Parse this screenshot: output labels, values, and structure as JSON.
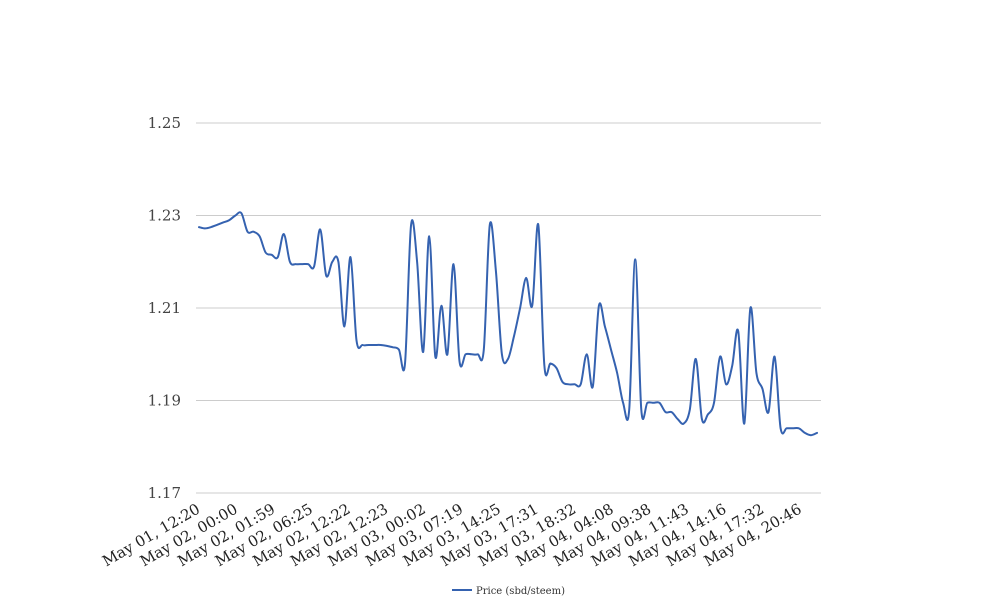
{
  "chart_data": {
    "type": "line",
    "title": "",
    "xlabel": "",
    "ylabel": "",
    "ylim": [
      1.17,
      1.25
    ],
    "yticks": [
      "1.25",
      "1.23",
      "1.21",
      "1.19",
      "1.17"
    ],
    "grid": true,
    "legend_position": "bottom-center",
    "colors": {
      "series": "#3562b0",
      "grid": "#cccccc"
    },
    "x_tick_labels": [
      "May 01, 12:20",
      "May 02, 00:00",
      "May 02, 01:59",
      "May 02, 06:25",
      "May 02, 12:22",
      "May 02, 12:23",
      "May 03, 00:02",
      "May 03, 07:19",
      "May 03, 14:25",
      "May 03, 17:31",
      "May 03, 18:32",
      "May 04, 04:08",
      "May 04, 09:38",
      "May 04, 11:43",
      "May 04, 14:16",
      "May 04, 17:32",
      "May 04, 20:46"
    ],
    "series": [
      {
        "name": "Price (sbd/steem)",
        "values": [
          1.2275,
          1.2272,
          1.2275,
          1.228,
          1.2285,
          1.229,
          1.23,
          1.2305,
          1.2265,
          1.2265,
          1.2255,
          1.222,
          1.2215,
          1.221,
          1.226,
          1.22,
          1.2195,
          1.2195,
          1.2195,
          1.219,
          1.227,
          1.217,
          1.22,
          1.22,
          1.206,
          1.221,
          1.203,
          1.202,
          1.202,
          1.202,
          1.202,
          1.2018,
          1.2015,
          1.201,
          1.198,
          1.228,
          1.22,
          1.2005,
          1.2255,
          1.1995,
          1.2105,
          1.2,
          1.2195,
          1.1985,
          1.2,
          1.2,
          1.2,
          1.201,
          1.228,
          1.218,
          1.2,
          1.199,
          1.204,
          1.21,
          1.2165,
          1.2105,
          1.228,
          1.1975,
          1.198,
          1.197,
          1.194,
          1.1935,
          1.1935,
          1.1935,
          1.2,
          1.193,
          1.2105,
          1.206,
          1.201,
          1.196,
          1.1895,
          1.188,
          1.2205,
          1.188,
          1.1895,
          1.1895,
          1.1895,
          1.1875,
          1.1875,
          1.186,
          1.185,
          1.188,
          1.199,
          1.186,
          1.187,
          1.1895,
          1.1995,
          1.1935,
          1.1975,
          1.205,
          1.185,
          1.21,
          1.196,
          1.1925,
          1.1875,
          1.1995,
          1.184,
          1.184,
          1.184,
          1.184,
          1.183,
          1.1825,
          1.183
        ]
      }
    ]
  }
}
